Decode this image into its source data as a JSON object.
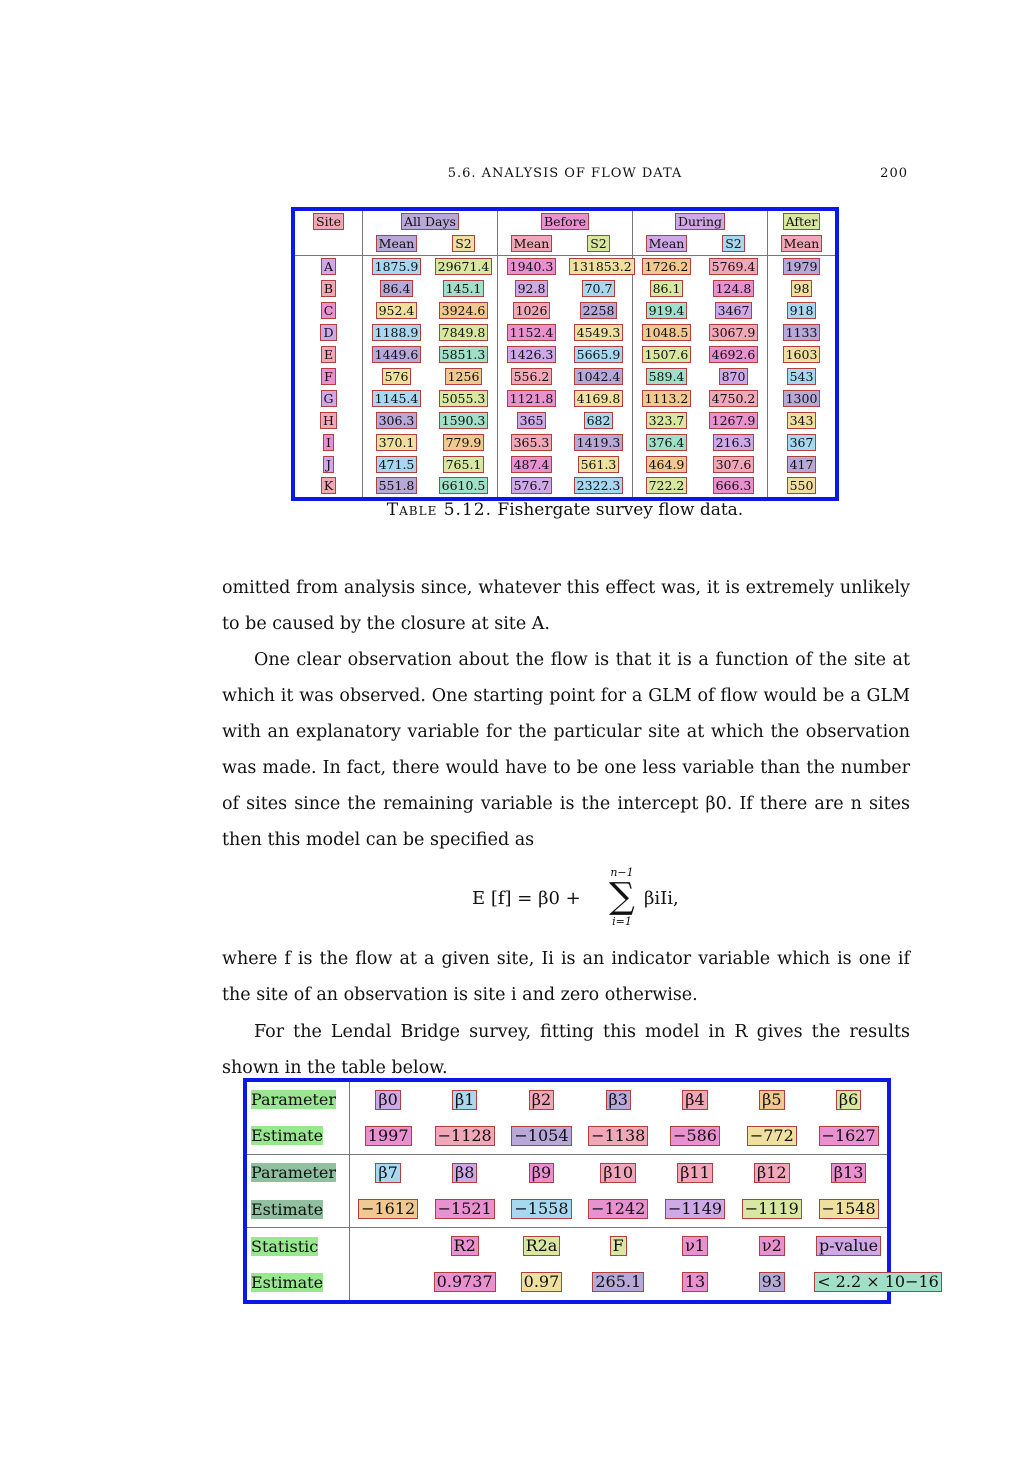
{
  "running_head": {
    "title": "5.6. ANALYSIS OF FLOW DATA",
    "page": "200"
  },
  "flow_table": {
    "group_headers": [
      "Site",
      "All Days",
      "Before",
      "During",
      "After"
    ],
    "sub_headers": [
      "Mean",
      "S2",
      "Mean",
      "S2",
      "Mean",
      "S2",
      "Mean"
    ],
    "rows": [
      [
        "A",
        "1875.9",
        "29671.4",
        "1940.3",
        "131853.2",
        "1726.2",
        "5769.4",
        "1979"
      ],
      [
        "B",
        "86.4",
        "145.1",
        "92.8",
        "70.7",
        "86.1",
        "124.8",
        "98"
      ],
      [
        "C",
        "952.4",
        "3924.6",
        "1026",
        "2258",
        "919.4",
        "3467",
        "918"
      ],
      [
        "D",
        "1188.9",
        "7849.8",
        "1152.4",
        "4549.3",
        "1048.5",
        "3067.9",
        "1133"
      ],
      [
        "E",
        "1449.6",
        "5851.3",
        "1426.3",
        "5665.9",
        "1507.6",
        "4692.6",
        "1603"
      ],
      [
        "F",
        "576",
        "1256",
        "556.2",
        "1042.4",
        "589.4",
        "870",
        "543"
      ],
      [
        "G",
        "1145.4",
        "5055.3",
        "1121.8",
        "4169.8",
        "1113.2",
        "4750.2",
        "1300"
      ],
      [
        "H",
        "306.3",
        "1590.3",
        "365",
        "682",
        "323.7",
        "1267.9",
        "343"
      ],
      [
        "I",
        "370.1",
        "779.9",
        "365.3",
        "1419.3",
        "376.4",
        "216.3",
        "367"
      ],
      [
        "J",
        "471.5",
        "765.1",
        "487.4",
        "561.3",
        "464.9",
        "307.6",
        "417"
      ],
      [
        "K",
        "551.8",
        "6610.5",
        "576.7",
        "2322.3",
        "722.2",
        "666.3",
        "550"
      ]
    ]
  },
  "caption": {
    "label": "Table 5.12.",
    "text": "Fishergate survey flow data."
  },
  "paragraphs": [
    "omitted from analysis since, whatever this effect was, it is extremely unlikely to be caused by the closure at site A.",
    "One clear observation about the flow is that it is a function of the site at which it was observed. One starting point for a GLM of flow would be a GLM with an explanatory variable for the particular site at which the observation was made. In fact, there would have to be one less variable than the number of sites since the remaining variable is the intercept β0. If there are n sites then this model can be specified as"
  ],
  "equation": {
    "lhs": "E [f] = β0 +",
    "sum_top": "n−1",
    "sum_bottom": "i=1",
    "rhs": "βiIi,"
  },
  "paragraph_after_eq": "where f is the flow at a given site, Ii is an indicator variable which is one if the site of an observation is site i and zero otherwise.",
  "paragraph_last": "For the Lendal Bridge survey, fitting this model in R gives the results shown in the table below.",
  "glm_table": {
    "block1": {
      "param_label": "Parameter",
      "est_label": "Estimate",
      "params": [
        "β0",
        "β1",
        "β2",
        "β3",
        "β4",
        "β5",
        "β6"
      ],
      "estimates": [
        "1997",
        "−1128",
        "−1054",
        "−1138",
        "−586",
        "−772",
        "−1627"
      ]
    },
    "block2": {
      "param_label": "Parameter",
      "est_label": "Estimate",
      "params": [
        "β7",
        "β8",
        "β9",
        "β10",
        "β11",
        "β12",
        "β13"
      ],
      "estimates": [
        "−1612",
        "−1521",
        "−1558",
        "−1242",
        "−1149",
        "−1119",
        "−1548"
      ]
    },
    "block3": {
      "param_label": "Statistic",
      "est_label": "Estimate",
      "params": [
        "R2",
        "R2a",
        "F",
        "ν1",
        "ν2",
        "p-value"
      ],
      "estimates": [
        "0.9737",
        "0.97",
        "265.1",
        "13",
        "93",
        "< 2.2 × 10−16"
      ]
    }
  }
}
